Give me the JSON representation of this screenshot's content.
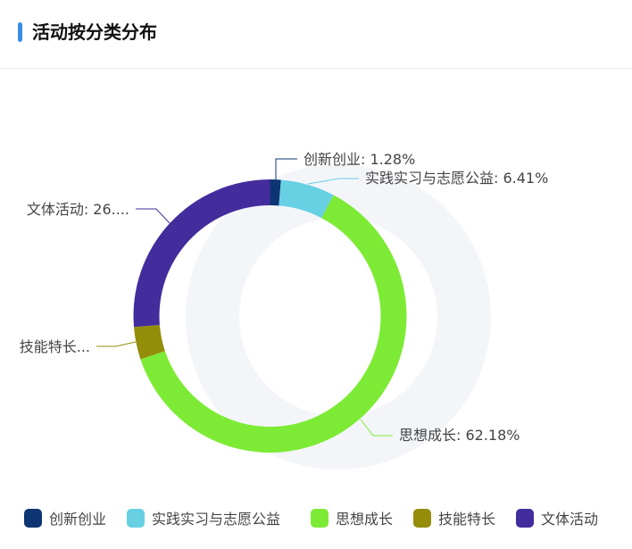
{
  "header": {
    "title": "活动按分类分布",
    "accent": "#3a8ee6"
  },
  "chart_data": {
    "type": "pie",
    "variant": "donut",
    "title": "",
    "legend_position": "bottom",
    "slices": [
      {
        "name": "创新创业",
        "percent": 1.28,
        "color": "#0e3573",
        "label": "创新创业: 1.28%"
      },
      {
        "name": "实践实习与志愿公益",
        "percent": 6.41,
        "color": "#67d0e3",
        "label": "实践实习与志愿公益: 6.41%"
      },
      {
        "name": "思想成长",
        "percent": 62.18,
        "color": "#7deb35",
        "label": "思想成长: 62.18%"
      },
      {
        "name": "技能特长",
        "percent": 3.85,
        "color": "#948d0a",
        "label": "技能特长..."
      },
      {
        "name": "文体活动",
        "percent": 26.28,
        "color": "#432c9c",
        "label": "文体活动: 26...."
      }
    ],
    "background_ring_color": "#f3f5f9"
  }
}
